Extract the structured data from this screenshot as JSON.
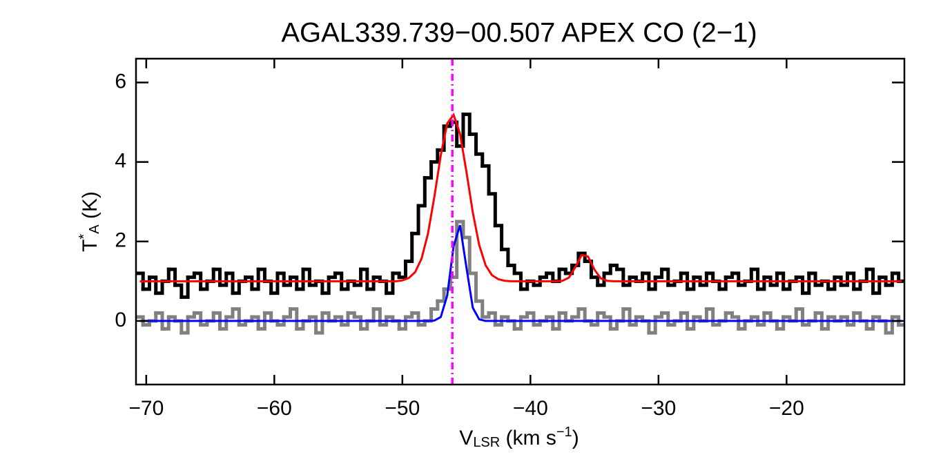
{
  "chart_data": {
    "type": "line",
    "title": "AGAL339.739−00.507  APEX CO (2−1)",
    "x_label": [
      {
        "text": "V"
      },
      {
        "text": "LSR",
        "sub": true
      },
      {
        "text": " (km s"
      },
      {
        "text": "−1",
        "sup": true
      },
      {
        "text": ")"
      }
    ],
    "y_label": [
      {
        "text": "T"
      },
      {
        "text": "*",
        "sup": true
      },
      {
        "text": "A",
        "sub": true
      },
      {
        "text": " (K)"
      }
    ],
    "xlim": [
      -70.8,
      -10.8
    ],
    "ylim": [
      -1.6,
      6.6
    ],
    "xticks": [
      {
        "value": -70,
        "label": "−70"
      },
      {
        "value": -60,
        "label": "−60"
      },
      {
        "value": -50,
        "label": "−50"
      },
      {
        "value": -40,
        "label": "−40"
      },
      {
        "value": -30,
        "label": "−30"
      },
      {
        "value": -20,
        "label": "−20"
      }
    ],
    "yticks": [
      0,
      2,
      4,
      6
    ],
    "vline": {
      "x": -46.1,
      "color": "#ff00ff"
    },
    "x": [
      -70.5,
      -70,
      -69.5,
      -69,
      -68.5,
      -68,
      -67.5,
      -67,
      -66.5,
      -66,
      -65.5,
      -65,
      -64.5,
      -64,
      -63.5,
      -63,
      -62.5,
      -62,
      -61.5,
      -61,
      -60.5,
      -60,
      -59.5,
      -59,
      -58.5,
      -58,
      -57.5,
      -57,
      -56.5,
      -56,
      -55.5,
      -55,
      -54.5,
      -54,
      -53.5,
      -53,
      -52.5,
      -52,
      -51.5,
      -51,
      -50.5,
      -50,
      -49.5,
      -49,
      -48.5,
      -48,
      -47.5,
      -47,
      -46.5,
      -46,
      -45.5,
      -45,
      -44.5,
      -44,
      -43.5,
      -43,
      -42.5,
      -42,
      -41.5,
      -41,
      -40.5,
      -40,
      -39.5,
      -39,
      -38.5,
      -38,
      -37.5,
      -37,
      -36.5,
      -36,
      -35.5,
      -35,
      -34.5,
      -34,
      -33.5,
      -33,
      -32.5,
      -32,
      -31.5,
      -31,
      -30.5,
      -30,
      -29.5,
      -29,
      -28.5,
      -28,
      -27.5,
      -27,
      -26.5,
      -26,
      -25.5,
      -25,
      -24.5,
      -24,
      -23.5,
      -23,
      -22.5,
      -22,
      -21.5,
      -21,
      -20.5,
      -20,
      -19.5,
      -19,
      -18.5,
      -18,
      -17.5,
      -17,
      -16.5,
      -16,
      -15.5,
      -15,
      -14.5,
      -14,
      -13.5,
      -13,
      -12.5,
      -12,
      -11.5,
      -11
    ],
    "series": [
      {
        "color": "#808080",
        "style": "step",
        "values": [
          0.1,
          -0.1,
          0.0,
          0.2,
          -0.2,
          0.1,
          0.0,
          -0.3,
          0.1,
          0.2,
          -0.1,
          0.0,
          0.2,
          -0.2,
          0.1,
          0.3,
          -0.1,
          0.0,
          0.1,
          -0.2,
          0.2,
          0.0,
          -0.1,
          0.1,
          0.3,
          -0.2,
          0.0,
          0.1,
          -0.3,
          0.2,
          0.0,
          0.1,
          -0.1,
          0.2,
          0.1,
          -0.2,
          0.0,
          0.3,
          -0.1,
          0.1,
          0.0,
          -0.2,
          0.1,
          0.2,
          -0.1,
          0.0,
          0.3,
          0.5,
          0.8,
          1.1,
          2.5,
          2.1,
          1.2,
          0.5,
          0.1,
          0.2,
          -0.1,
          0.1,
          0.0,
          -0.2,
          0.1,
          0.2,
          -0.1,
          0.0,
          0.1,
          -0.2,
          0.2,
          0.0,
          0.1,
          0.3,
          0.0,
          -0.1,
          0.2,
          0.1,
          -0.2,
          0.0,
          0.3,
          -0.1,
          0.1,
          0.0,
          -0.3,
          0.1,
          0.2,
          -0.1,
          0.0,
          0.2,
          -0.2,
          0.1,
          0.0,
          0.3,
          -0.1,
          0.0,
          0.2,
          0.1,
          -0.2,
          0.0,
          0.1,
          -0.1,
          0.2,
          0.0,
          -0.2,
          0.1,
          0.0,
          0.3,
          -0.1,
          0.0,
          0.2,
          -0.2,
          0.1,
          0.0,
          0.1,
          -0.1,
          0.2,
          0.0,
          -0.2,
          0.1,
          0.0,
          -0.3,
          0.1,
          -0.1
        ]
      },
      {
        "color": "#000000",
        "style": "step",
        "values": [
          1.2,
          0.8,
          1.1,
          0.7,
          1.0,
          1.3,
          0.9,
          0.6,
          1.1,
          1.2,
          0.8,
          1.0,
          1.3,
          0.9,
          1.2,
          0.7,
          1.0,
          1.1,
          0.8,
          1.3,
          1.0,
          0.7,
          1.2,
          0.9,
          1.1,
          0.8,
          1.3,
          0.9,
          1.0,
          0.7,
          1.1,
          1.2,
          0.8,
          1.0,
          0.9,
          1.3,
          0.8,
          1.1,
          1.0,
          0.7,
          1.2,
          1.1,
          1.5,
          2.2,
          2.9,
          3.6,
          4.0,
          4.3,
          4.9,
          5.0,
          4.4,
          5.2,
          4.7,
          4.2,
          3.9,
          3.2,
          2.4,
          1.8,
          1.4,
          1.2,
          0.8,
          1.0,
          0.9,
          1.1,
          1.2,
          1.0,
          1.3,
          1.2,
          1.4,
          1.7,
          1.5,
          1.1,
          0.9,
          1.2,
          1.4,
          1.3,
          0.9,
          1.1,
          1.0,
          1.2,
          0.8,
          1.1,
          1.3,
          0.9,
          1.0,
          1.2,
          0.8,
          1.1,
          0.9,
          1.2,
          1.0,
          0.8,
          1.1,
          1.2,
          0.9,
          1.0,
          1.3,
          0.8,
          1.1,
          0.9,
          1.2,
          0.8,
          1.0,
          1.1,
          0.7,
          1.2,
          0.9,
          1.0,
          0.8,
          1.1,
          0.9,
          1.2,
          0.8,
          1.0,
          1.3,
          0.7,
          1.1,
          0.9,
          1.2,
          1.0
        ]
      },
      {
        "color": "#ff0000",
        "style": "line",
        "values": [
          1,
          1,
          1,
          1,
          1,
          1,
          1,
          1,
          1,
          1,
          1,
          1,
          1,
          1,
          1,
          1,
          1,
          1,
          1,
          1,
          1,
          1,
          1,
          1,
          1,
          1,
          1,
          1,
          1,
          1,
          1,
          1,
          1,
          1,
          1,
          1,
          1,
          1,
          1,
          1,
          1,
          1.02,
          1.08,
          1.23,
          1.57,
          2.2,
          3.13,
          4.17,
          4.97,
          5.19,
          4.71,
          3.76,
          2.73,
          1.91,
          1.4,
          1.15,
          1.05,
          1.01,
          1,
          1,
          1,
          1,
          1,
          1,
          1,
          1,
          1.01,
          1.09,
          1.35,
          1.66,
          1.62,
          1.29,
          1.07,
          1.01,
          1,
          1,
          1,
          1,
          1,
          1,
          1,
          1,
          1,
          1,
          1,
          1,
          1,
          1,
          1,
          1,
          1,
          1,
          1,
          1,
          1,
          1,
          1,
          1,
          1,
          1,
          1,
          1,
          1,
          1,
          1,
          1,
          1,
          1,
          1,
          1,
          1,
          1,
          1,
          1,
          1,
          1,
          1,
          1,
          1,
          1
        ]
      },
      {
        "color": "#0000ff",
        "style": "line",
        "values": [
          0,
          0,
          0,
          0,
          0,
          0,
          0,
          0,
          0,
          0,
          0,
          0,
          0,
          0,
          0,
          0,
          0,
          0,
          0,
          0,
          0,
          0,
          0,
          0,
          0,
          0,
          0,
          0,
          0,
          0,
          0,
          0,
          0,
          0,
          0,
          0,
          0,
          0,
          0,
          0,
          0,
          0,
          0,
          0,
          0,
          0,
          0.01,
          0.1,
          0.64,
          1.88,
          2.41,
          1.35,
          0.33,
          0.04,
          0,
          0,
          0,
          0,
          0,
          0,
          0,
          0,
          0,
          0,
          0,
          0,
          0,
          0,
          0,
          0,
          0,
          0,
          0,
          0,
          0,
          0,
          0,
          0,
          0,
          0,
          0,
          0,
          0,
          0,
          0,
          0,
          0,
          0,
          0,
          0,
          0,
          0,
          0,
          0,
          0,
          0,
          0,
          0,
          0,
          0,
          0,
          0,
          0,
          0,
          0,
          0,
          0,
          0,
          0,
          0,
          0,
          0,
          0,
          0,
          0,
          0,
          0,
          0,
          0,
          0
        ]
      }
    ]
  }
}
